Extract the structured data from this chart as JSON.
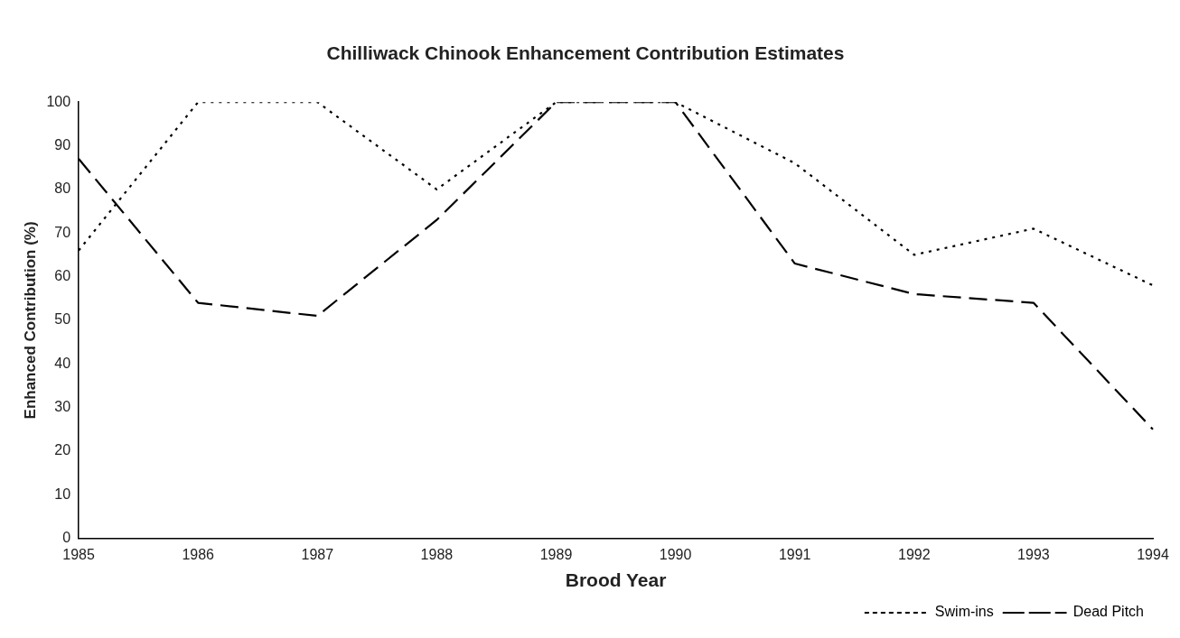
{
  "chart_data": {
    "type": "line",
    "title": "Chilliwack Chinook Enhancement Contribution Estimates",
    "xlabel": "Brood Year",
    "ylabel": "Enhanced Contribution (%)",
    "categories": [
      "1985",
      "1986",
      "1987",
      "1988",
      "1989",
      "1990",
      "1991",
      "1992",
      "1993",
      "1994"
    ],
    "series": [
      {
        "name": "Swim-ins",
        "color": "#000000",
        "line_style": "dotted",
        "values": [
          66,
          100,
          100,
          80,
          100,
          100,
          86,
          65,
          71,
          58
        ]
      },
      {
        "name": "Dead Pitch",
        "color": "#000000",
        "line_style": "dashed",
        "values": [
          87,
          54,
          51,
          73,
          100,
          100,
          63,
          56,
          54,
          25
        ]
      }
    ],
    "ylim": [
      0,
      100
    ],
    "yticks": [
      0,
      10,
      20,
      30,
      40,
      50,
      60,
      70,
      80,
      90,
      100
    ],
    "legend": "bottom right",
    "marker": "none"
  }
}
